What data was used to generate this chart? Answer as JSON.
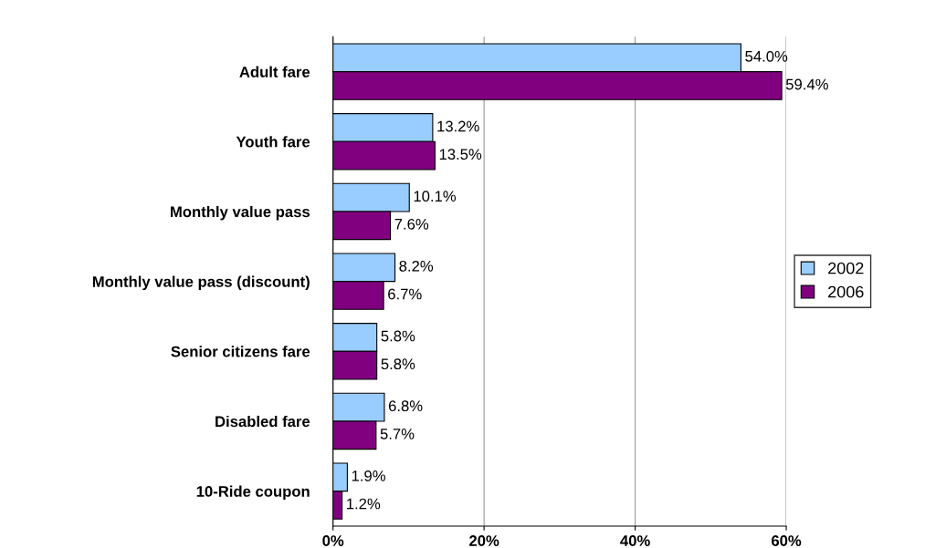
{
  "chart_data": {
    "type": "bar",
    "orientation": "horizontal",
    "categories": [
      "Adult fare",
      "Youth fare",
      "Monthly value pass",
      "Monthly value pass (discount)",
      "Senior citizens fare",
      "Disabled fare",
      "10-Ride coupon"
    ],
    "series": [
      {
        "name": "2002",
        "color": "#99ccff",
        "values": [
          54.0,
          13.2,
          10.1,
          8.2,
          5.8,
          6.8,
          1.9
        ],
        "value_labels": [
          "54.0%",
          "13.2%",
          "10.1%",
          "8.2%",
          "5.8%",
          "6.8%",
          "1.9%"
        ]
      },
      {
        "name": "2006",
        "color": "#800080",
        "values": [
          59.4,
          13.5,
          7.6,
          6.7,
          5.8,
          5.7,
          1.2
        ],
        "value_labels": [
          "59.4%",
          "13.5%",
          "7.6%",
          "6.7%",
          "5.8%",
          "5.7%",
          "1.2%"
        ]
      }
    ],
    "xlim": [
      0,
      60
    ],
    "xticks": [
      {
        "value": 0,
        "label": "0%"
      },
      {
        "value": 20,
        "label": "20%"
      },
      {
        "value": 40,
        "label": "40%"
      },
      {
        "value": 60,
        "label": "60%"
      }
    ],
    "grid": "x",
    "legend": "right"
  }
}
